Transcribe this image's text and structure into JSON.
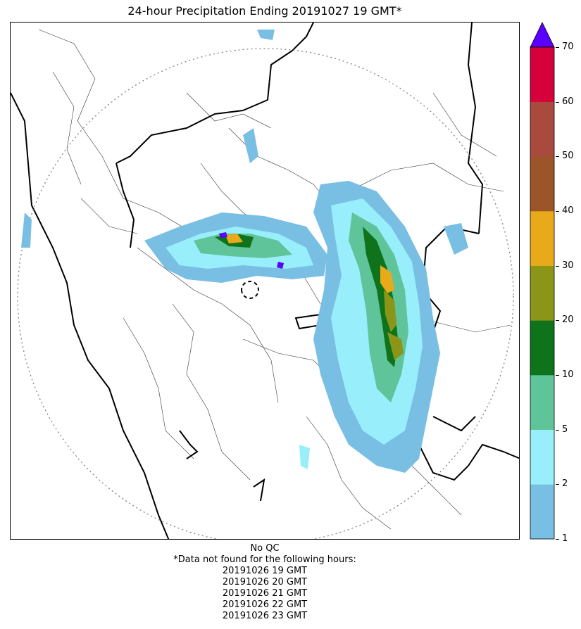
{
  "title": "24-hour Precipitation Ending 20191027 19 GMT*",
  "colorbar": {
    "ticks": [
      "1",
      "2",
      "5",
      "10",
      "20",
      "30",
      "40",
      "50",
      "60",
      "70"
    ],
    "colors": [
      "#78bfe3",
      "#98eefa",
      "#5fc49a",
      "#0e731a",
      "#8b9619",
      "#e8aa1a",
      "#9c5429",
      "#a84a3e",
      "#d6003b"
    ],
    "extend_color": "#5a00ff"
  },
  "footer": {
    "qc": "No QC",
    "note": "*Data not found for the following hours:",
    "hours": [
      "20191026 19 GMT",
      "20191026 20 GMT",
      "20191026 21 GMT",
      "20191026 22 GMT",
      "20191026 23 GMT"
    ]
  },
  "map": {
    "range_ring_color": "#808080",
    "border_color": "#000000"
  }
}
